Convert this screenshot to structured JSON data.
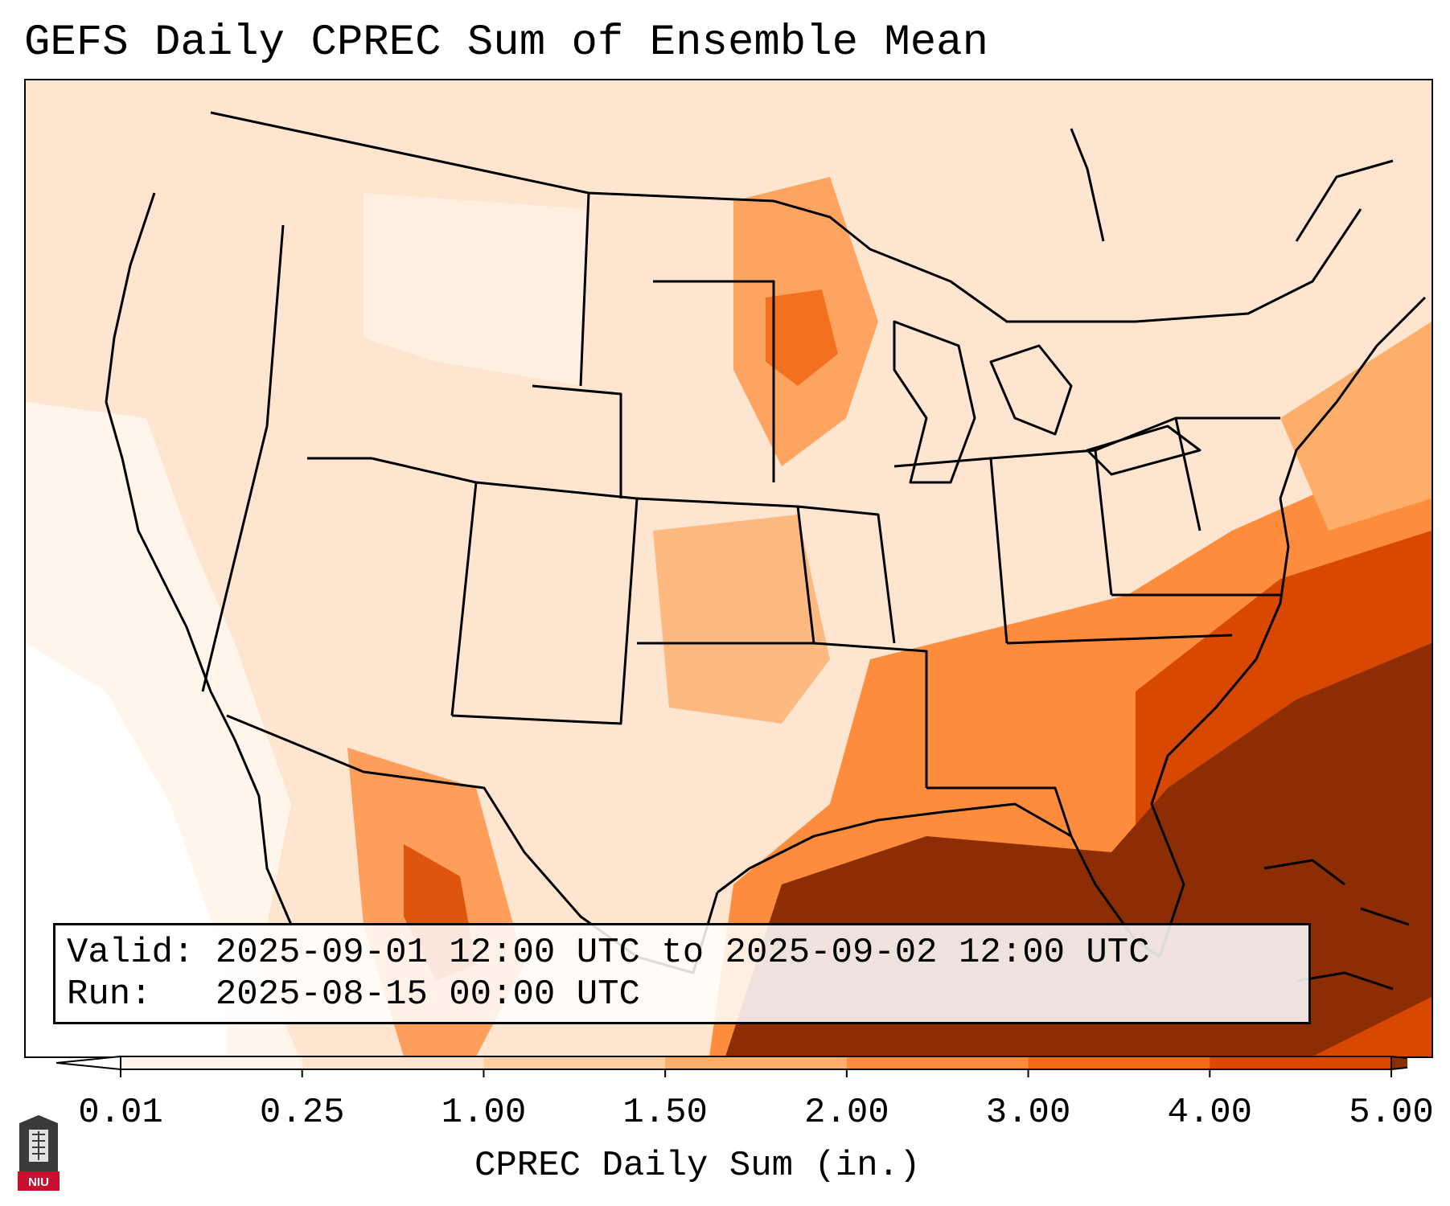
{
  "title": "GEFS Daily CPREC Sum of Ensemble Mean",
  "info": {
    "valid_line": "Valid: 2025-09-01 12:00 UTC to 2025-09-02 12:00 UTC",
    "run_line": "Run:   2025-08-15 00:00 UTC"
  },
  "colorbar": {
    "ticks": [
      "0.01",
      "0.25",
      "1.00",
      "1.50",
      "2.00",
      "3.00",
      "4.00",
      "5.00"
    ],
    "label": "CPREC Daily Sum (in.)",
    "colors": [
      "#fff5eb",
      "#fde5cf",
      "#fdd0a2",
      "#fdae6b",
      "#fd8d3c",
      "#f16913",
      "#d94801",
      "#8c2d04"
    ]
  },
  "logo": {
    "text": "NIU",
    "colors": {
      "body": "#3a3a3a",
      "band": "#c8102e"
    }
  }
}
